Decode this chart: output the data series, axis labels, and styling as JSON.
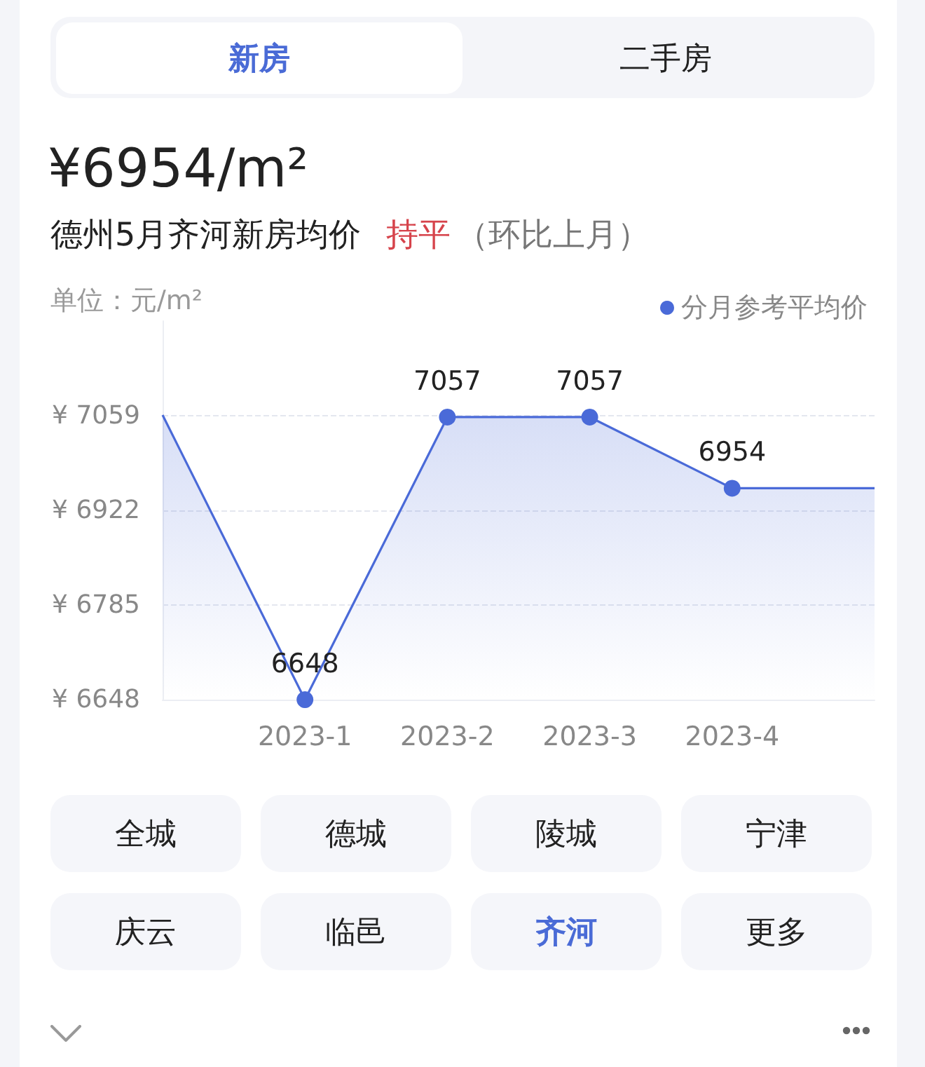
{
  "chart_data": {
    "type": "area",
    "title": "¥6954/m²",
    "subtitle": "德州5月齐河新房均价",
    "ylabel": "单位：元/m²",
    "annotations": [
      "持平",
      "（环比上月）",
      "新房",
      "二手房",
      "全城",
      "德城",
      "陵城",
      "宁津",
      "庆云",
      "临邑",
      "齐河",
      "更多"
    ],
    "categories": [
      null,
      "2023-1",
      "2023-2",
      "2023-3",
      "2023-4",
      null
    ],
    "series": [
      {
        "name": "分月参考平均价",
        "color": "#4a6ad8",
        "values": [
          7060,
          6648,
          7057,
          7057,
          6954,
          6954
        ],
        "value_labels": [
          null,
          "6648",
          "7057",
          "7057",
          "6954",
          null
        ]
      }
    ],
    "ylim": [
      6648,
      7196
    ],
    "yticks": [
      {
        "value": 6648,
        "label": "¥ 6648"
      },
      {
        "value": 6785,
        "label": "¥ 6785"
      },
      {
        "value": 6922,
        "label": "¥ 6922"
      },
      {
        "value": 7059,
        "label": "¥ 7059"
      }
    ],
    "grid": "y",
    "legend": "top right",
    "marker": "circle"
  }
}
